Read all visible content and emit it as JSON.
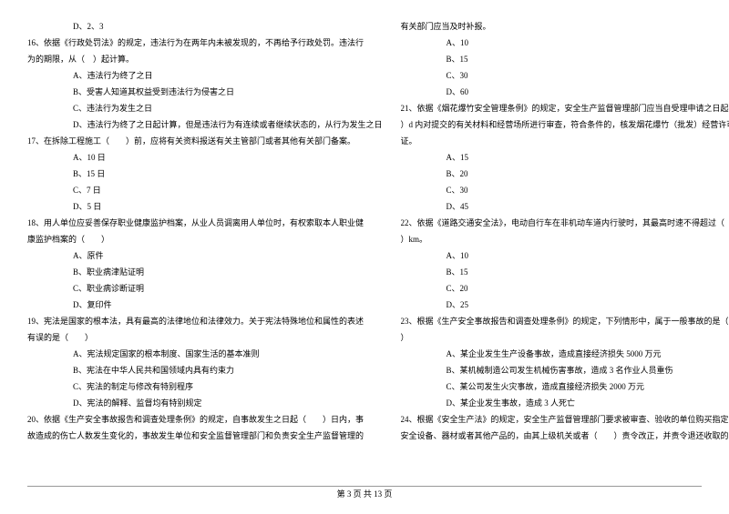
{
  "left": {
    "lines": [
      {
        "cls": "indent2",
        "text": "D、2、3"
      },
      {
        "cls": "",
        "text": "16、依据《行政处罚法》的规定，违法行为在两年内未被发现的，不再给予行政处罚。违法行"
      },
      {
        "cls": "",
        "text": "为的期限，从（　）起计算。"
      },
      {
        "cls": "indent2",
        "text": "A、违法行为终了之日"
      },
      {
        "cls": "indent2",
        "text": "B、受害人知道其权益受到违法行为侵害之日"
      },
      {
        "cls": "indent2",
        "text": "C、违法行为发生之日"
      },
      {
        "cls": "indent2",
        "text": "D、违法行为终了之日起计算，但是违法行为有连续或者继续状态的，从行为发生之日"
      },
      {
        "cls": "",
        "text": "17、在拆除工程施工（　　）前，应将有关资料报送有关主管部门或者其他有关部门备案。"
      },
      {
        "cls": "indent2",
        "text": "A、10 日"
      },
      {
        "cls": "indent2",
        "text": "B、15 日"
      },
      {
        "cls": "indent2",
        "text": "C、7 日"
      },
      {
        "cls": "indent2",
        "text": "D、5 日"
      },
      {
        "cls": "",
        "text": "18、用人单位应妥善保存职业健康监护档案，从业人员调离用人单位时，有权索取本人职业健"
      },
      {
        "cls": "",
        "text": "康监护档案的（　　）"
      },
      {
        "cls": "indent2",
        "text": "A、原件"
      },
      {
        "cls": "indent2",
        "text": "B、职业病津贴证明"
      },
      {
        "cls": "indent2",
        "text": "C、职业病诊断证明"
      },
      {
        "cls": "indent2",
        "text": "D、复印件"
      },
      {
        "cls": "",
        "text": "19、宪法是国家的根本法，具有最高的法律地位和法律效力。关于宪法特殊地位和属性的表述"
      },
      {
        "cls": "",
        "text": "有误的是（　　）"
      },
      {
        "cls": "indent2",
        "text": "A、宪法规定国家的根本制度、国家生活的基本准则"
      },
      {
        "cls": "indent2",
        "text": "B、宪法在中华人民共和国领域内具有约束力"
      },
      {
        "cls": "indent2",
        "text": "C、宪法的制定与修改有特别程序"
      },
      {
        "cls": "indent2",
        "text": "D、宪法的解释、监督均有特别规定"
      },
      {
        "cls": "",
        "text": "20、依据《生产安全事故报告和调查处理条例》的规定，自事故发生之日起（　　）日内，事"
      },
      {
        "cls": "",
        "text": "故造成的伤亡人数发生变化的，事故发生单位和安全监督管理部门和负责安全生产监督管理的"
      }
    ]
  },
  "right": {
    "lines": [
      {
        "cls": "",
        "text": "有关部门应当及时补报。"
      },
      {
        "cls": "indent2",
        "text": "A、10"
      },
      {
        "cls": "indent2",
        "text": "B、15"
      },
      {
        "cls": "indent2",
        "text": "C、30"
      },
      {
        "cls": "indent2",
        "text": "D、60"
      },
      {
        "cls": "",
        "text": "21、依据《烟花爆竹安全管理条例》的规定，安全生产监督管理部门应当自受理申请之日起（"
      },
      {
        "cls": "",
        "text": "）d 内对提交的有关材料和经营场所进行审查，符合条件的，核发烟花爆竹（批发）经营许可"
      },
      {
        "cls": "",
        "text": "证。"
      },
      {
        "cls": "indent2",
        "text": "A、15"
      },
      {
        "cls": "indent2",
        "text": "B、20"
      },
      {
        "cls": "indent2",
        "text": "C、30"
      },
      {
        "cls": "indent2",
        "text": "D、45"
      },
      {
        "cls": "",
        "text": "22、依据《道路交通安全法》，电动自行车在非机动车道内行驶时，其最高时速不得超过（"
      },
      {
        "cls": "",
        "text": "）km。"
      },
      {
        "cls": "indent2",
        "text": "A、10"
      },
      {
        "cls": "indent2",
        "text": "B、15"
      },
      {
        "cls": "indent2",
        "text": "C、20"
      },
      {
        "cls": "indent2",
        "text": "D、25"
      },
      {
        "cls": "",
        "text": "23、根据《生产安全事故报告和调查处理条例》的规定，下列情形中，属于一般事故的是（"
      },
      {
        "cls": "",
        "text": "）"
      },
      {
        "cls": "indent2",
        "text": "A、某企业发生生产设备事故，造成直接经济损失 5000 万元"
      },
      {
        "cls": "indent2",
        "text": "B、某机械制造公司发生机械伤害事故，造成 3 名作业人员重伤"
      },
      {
        "cls": "indent2",
        "text": "C、某公司发生火灾事故，造成直接经济损失 2000 万元"
      },
      {
        "cls": "indent2",
        "text": "D、某企业发生事故，造成 3 人死亡"
      },
      {
        "cls": "",
        "text": "24、根据《安全生产法》的规定，安全生产监督管理部门要求被审查、验收的单位购买指定的"
      },
      {
        "cls": "",
        "text": "安全设备、器材或者其他产品的，由其上级机关或者（　　）责令改正，并责令退还收取的费"
      }
    ]
  },
  "footer": "第 3 页 共 13 页"
}
